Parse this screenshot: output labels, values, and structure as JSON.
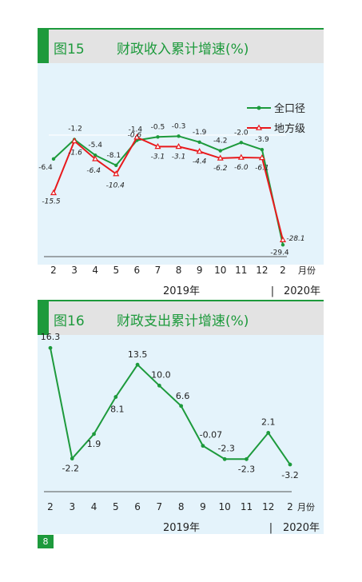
{
  "page_number": "8",
  "chart_data": [
    {
      "type": "line",
      "figure_label": "图15",
      "title": "财政收入累计增速(%)",
      "categories": [
        "2",
        "3",
        "4",
        "5",
        "6",
        "7",
        "8",
        "9",
        "10",
        "11",
        "12",
        "2"
      ],
      "x_unit": "月份",
      "year_labels": [
        "2019年",
        "|",
        "2020年"
      ],
      "ylim": [
        -32,
        2
      ],
      "grid": false,
      "legend_position": "top-right",
      "series": [
        {
          "name": "全口径",
          "color": "#1d9a3c",
          "marker": "circle",
          "values": [
            -6.4,
            -1.2,
            -5.4,
            -8.1,
            -1.4,
            -0.5,
            -0.3,
            -1.9,
            -4.2,
            -2.0,
            -3.9,
            -29.4
          ],
          "labels": [
            "-6.4",
            "-1.2",
            "-5.4",
            "-8.1",
            "-1.4",
            "-0.5",
            "-0.3",
            "-1.9",
            "-4.2",
            "-2.0",
            "-3.9",
            "-29.4"
          ]
        },
        {
          "name": "地方级",
          "color": "#e8191c",
          "marker": "triangle",
          "values": [
            -15.5,
            -1.6,
            -6.4,
            -10.4,
            -0.6,
            -3.1,
            -3.1,
            -4.4,
            -6.2,
            -6.0,
            -6.1,
            -28.1
          ],
          "labels": [
            "-15.5",
            "-1.6",
            "-6.4",
            "-10.4",
            "-0.6",
            "-3.1",
            "-3.1",
            "-4.4",
            "-6.2",
            "-6.0",
            "-6.1",
            "-28.1"
          ]
        }
      ]
    },
    {
      "type": "line",
      "figure_label": "图16",
      "title": "财政支出累计增速(%)",
      "categories": [
        "2",
        "3",
        "4",
        "5",
        "6",
        "7",
        "8",
        "9",
        "10",
        "11",
        "12",
        "2"
      ],
      "x_unit": "月份",
      "year_labels": [
        "2019年",
        "|",
        "2020年"
      ],
      "ylim": [
        -4,
        17
      ],
      "grid": false,
      "series": [
        {
          "color": "#1d9a3c",
          "marker": "circle",
          "values": [
            16.3,
            -2.2,
            1.9,
            8.1,
            13.5,
            10.0,
            6.6,
            -0.07,
            -2.3,
            -2.3,
            2.1,
            -3.2
          ],
          "labels": [
            "16.3",
            "-2.2",
            "1.9",
            "8.1",
            "13.5",
            "10.0",
            "6.6",
            "-0.07",
            "-2.3",
            "-2.3",
            "2.1",
            "-3.2"
          ]
        }
      ]
    }
  ]
}
